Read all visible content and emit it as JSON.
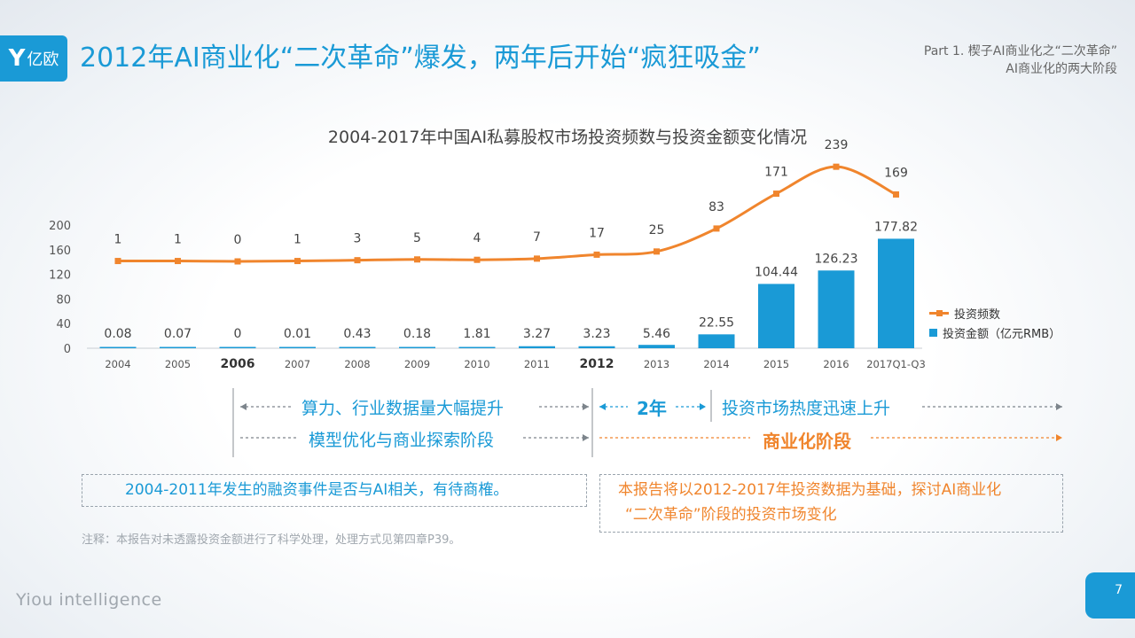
{
  "logo": {
    "mark": "Y",
    "text": "亿欧"
  },
  "title": "2012年AI商业化“二次革命”爆发，两年后开始“疯狂吸金”",
  "part": {
    "line1": "Part 1. 楔子AI商业化之“二次革命”",
    "line2": "AI商业化的两大阶段"
  },
  "colors": {
    "blue": "#1a9ad6",
    "orange": "#f0852d"
  },
  "chart_data": {
    "type": "bar",
    "title": "2004-2017年中国AI私募股权市场投资频数与投资金额变化情况",
    "categories": [
      "2004",
      "2005",
      "2006",
      "2007",
      "2008",
      "2009",
      "2010",
      "2011",
      "2012",
      "2013",
      "2014",
      "2015",
      "2016",
      "2017Q1-Q3"
    ],
    "bold_categories": [
      "2006",
      "2012"
    ],
    "y_ticks": [
      0,
      40,
      80,
      120,
      160,
      200
    ],
    "ylim": [
      0,
      200
    ],
    "series": [
      {
        "name": "投资金额（亿元RMB）",
        "type": "bar",
        "values": [
          0.08,
          0.07,
          0,
          0.01,
          0.43,
          0.18,
          1.81,
          3.27,
          3.23,
          5.46,
          22.55,
          104.44,
          126.23,
          177.82
        ],
        "labels": [
          "0.08",
          "0.07",
          "0",
          "0.01",
          "0.43",
          "0.18",
          "1.81",
          "3.27",
          "3.23",
          "5.46",
          "22.55",
          "104.44",
          "126.23",
          "177.82"
        ]
      },
      {
        "name": "投资频数",
        "type": "line",
        "values": [
          1,
          1,
          0,
          1,
          3,
          5,
          4,
          7,
          17,
          25,
          83,
          171,
          239,
          169
        ],
        "labels": [
          "1",
          "1",
          "0",
          "1",
          "3",
          "5",
          "4",
          "7",
          "17",
          "25",
          "83",
          "171",
          "239",
          "169"
        ]
      }
    ],
    "legend": [
      "投资频数",
      "投资金额（亿元RMB）"
    ],
    "legend_position": "right"
  },
  "phases": {
    "left_row1": "算力、行业数据量大幅提升",
    "left_row2": "模型优化与商业探索阶段",
    "middle": "2年",
    "right_row1": "投资市场热度迅速上升",
    "right_row2": "商业化阶段"
  },
  "notes": {
    "left": "2004-2011年发生的融资事件是否与AI相关，有待商榷。",
    "right_line1": "本报告将以2012-2017年投资数据为基础，探讨AI商业化",
    "right_line2": "“二次革命”阶段的投资市场变化"
  },
  "footnote": "注释：本报告对未透露投资金额进行了科学处理，处理方式见第四章P39。",
  "brand": "Yiou intelligence",
  "page_number": "7"
}
